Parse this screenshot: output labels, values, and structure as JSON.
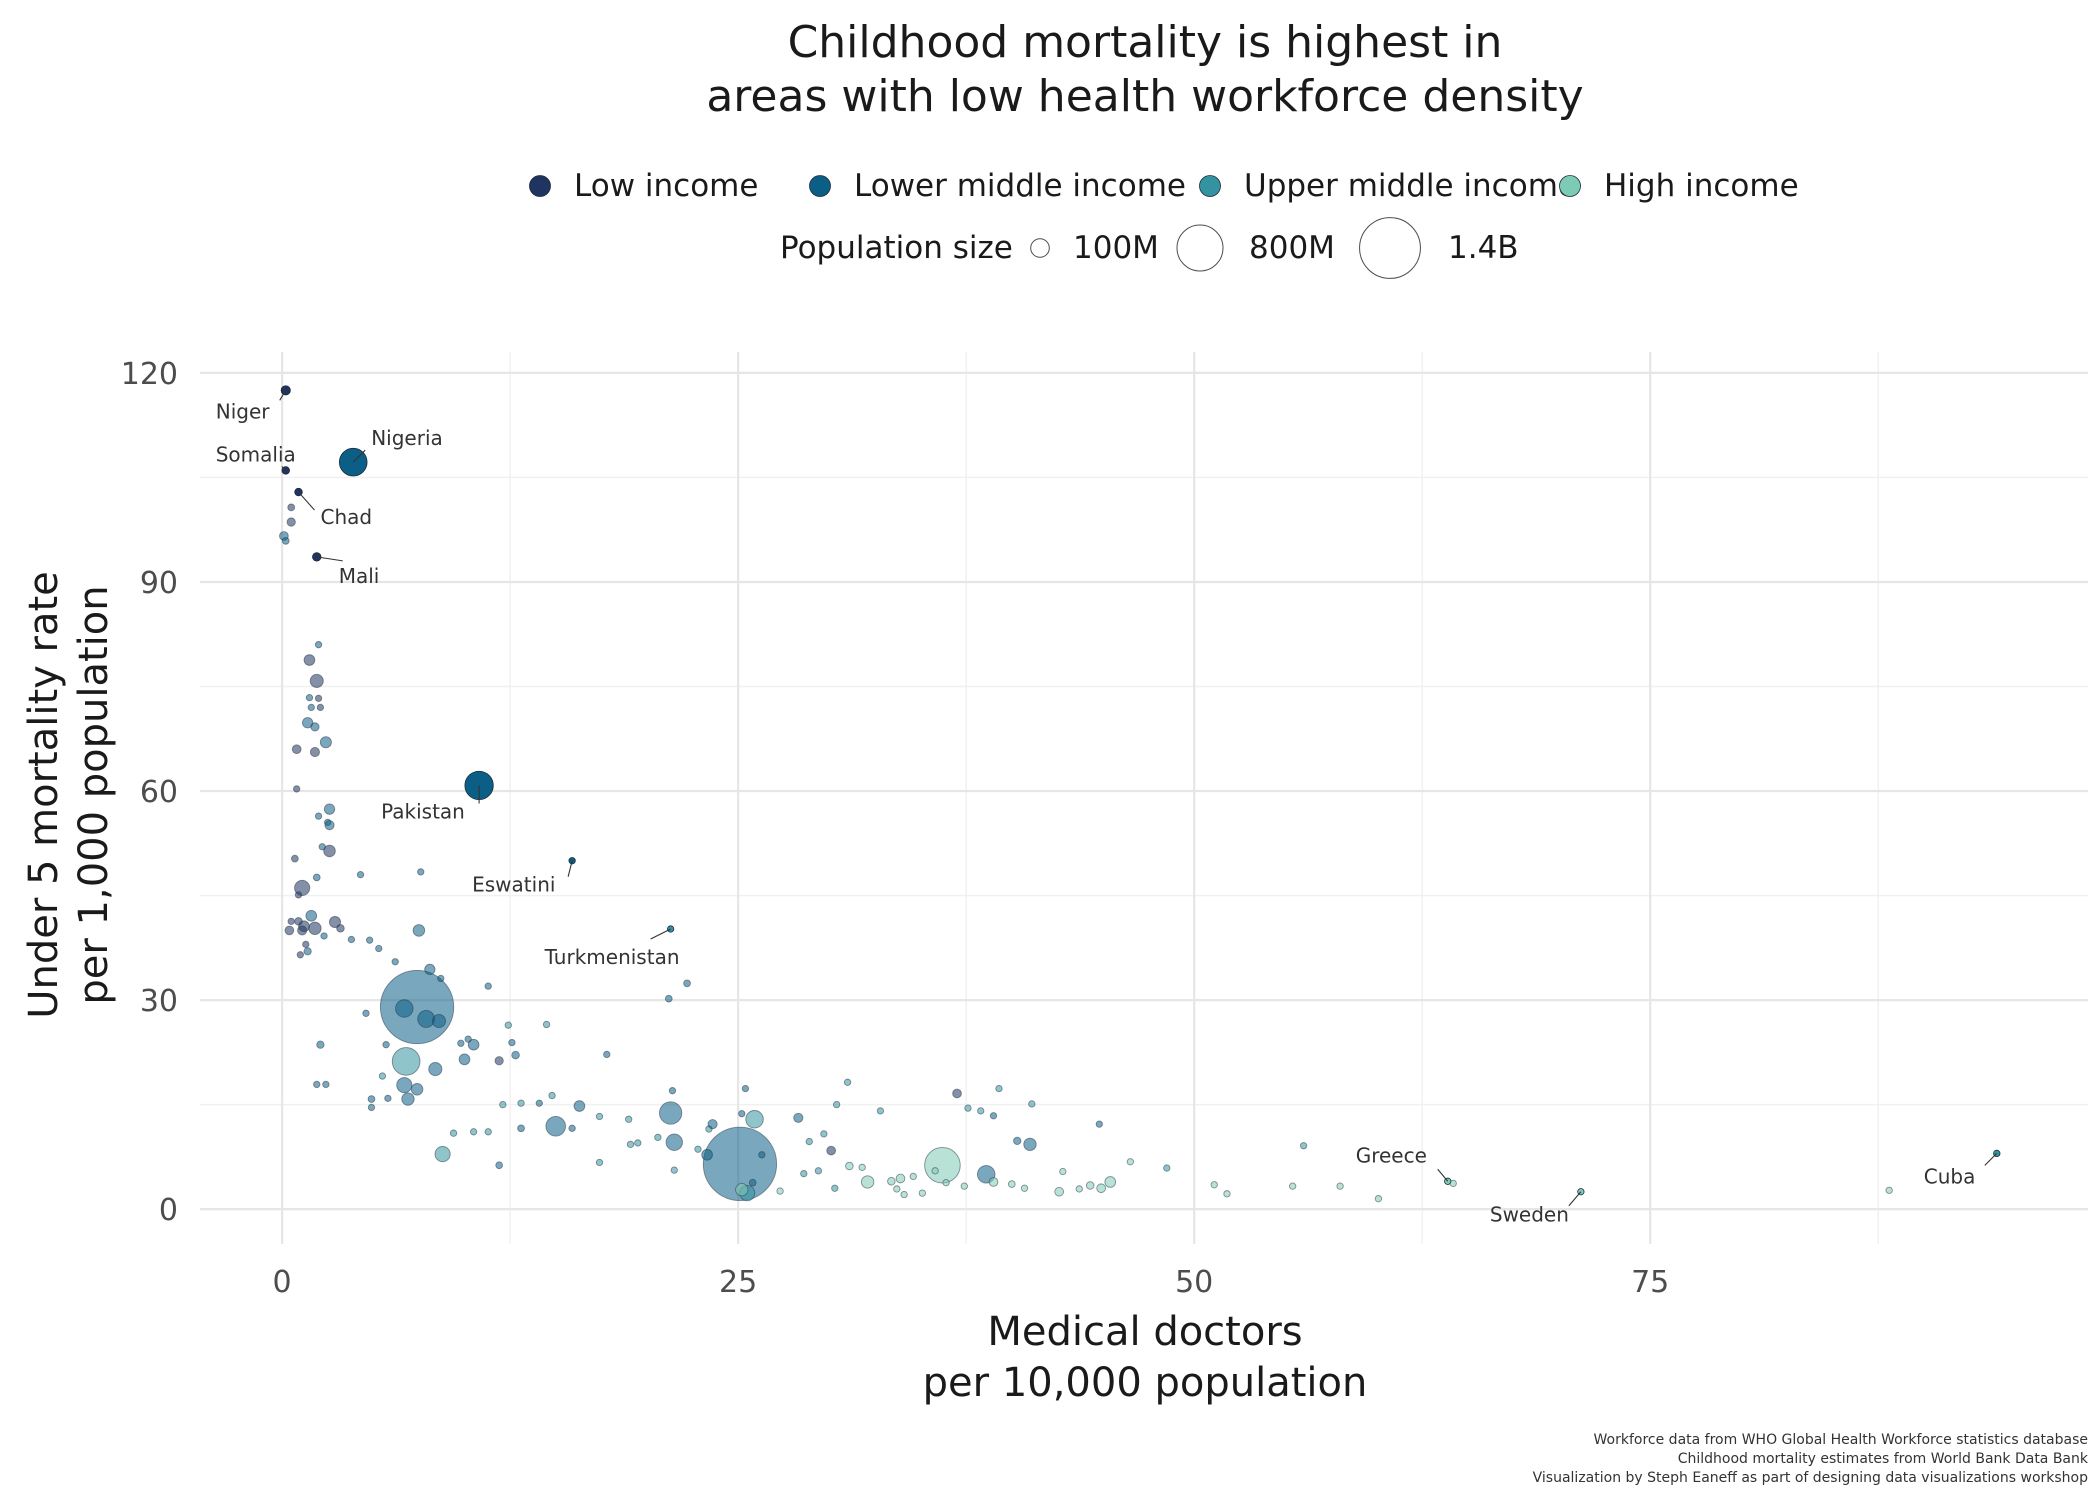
{
  "chart_data": {
    "type": "scatter",
    "title_lines": [
      "Childhood mortality is highest in",
      "areas with low health workforce density"
    ],
    "xlabel_lines": [
      "Medical doctors",
      "per 10,000 population"
    ],
    "ylabel_lines": [
      "Under 5 mortality rate",
      "per 1,000 population"
    ],
    "xlim": [
      -4.5,
      99
    ],
    "ylim": [
      -5,
      123
    ],
    "x_ticks": [
      0,
      25,
      50,
      75
    ],
    "y_ticks": [
      0,
      30,
      60,
      90,
      120
    ],
    "grid": true,
    "legend_position": "top",
    "color_legend": [
      {
        "label": "Low income",
        "color": "#1f3461"
      },
      {
        "label": "Lower middle income",
        "color": "#0b5f86"
      },
      {
        "label": "Upper middle income",
        "color": "#3393a1"
      },
      {
        "label": "High income",
        "color": "#7dcbb5"
      }
    ],
    "size_legend": {
      "title": "Population size",
      "items": [
        {
          "label": "100M",
          "population_millions": 100
        },
        {
          "label": "800M",
          "population_millions": 800
        },
        {
          "label": "1.4B",
          "population_millions": 1400
        }
      ]
    },
    "highlighted_points": [
      {
        "label": "Niger",
        "x": 0.2,
        "y": 117.5,
        "group": "Low income",
        "pop": 22
      },
      {
        "label": "Nigeria",
        "x": 3.9,
        "y": 107.2,
        "group": "Lower middle income",
        "pop": 200
      },
      {
        "label": "Somalia",
        "x": 0.2,
        "y": 106.0,
        "group": "Low income",
        "pop": 15
      },
      {
        "label": "Chad",
        "x": 0.9,
        "y": 102.9,
        "group": "Low income",
        "pop": 15
      },
      {
        "label": "Mali",
        "x": 1.9,
        "y": 93.6,
        "group": "Low income",
        "pop": 19
      },
      {
        "label": "Pakistan",
        "x": 10.8,
        "y": 60.8,
        "group": "Lower middle income",
        "pop": 210
      },
      {
        "label": "Eswatini",
        "x": 15.9,
        "y": 50.0,
        "group": "Lower middle income",
        "pop": 1
      },
      {
        "label": "Turkmenistan",
        "x": 21.3,
        "y": 40.2,
        "group": "Upper middle income",
        "pop": 6
      },
      {
        "label": "Greece",
        "x": 63.9,
        "y": 4.0,
        "group": "High income",
        "pop": 10
      },
      {
        "label": "Sweden",
        "x": 71.2,
        "y": 2.5,
        "group": "High income",
        "pop": 10
      },
      {
        "label": "Cuba",
        "x": 94.0,
        "y": 8.0,
        "group": "Upper middle income",
        "pop": 11
      }
    ],
    "points": [
      [
        0.1,
        96.6,
        2,
        20
      ],
      [
        0.2,
        95.9,
        2,
        12
      ],
      [
        0.5,
        100.7,
        1,
        12
      ],
      [
        0.5,
        98.6,
        1,
        18
      ],
      [
        1.5,
        78.8,
        1,
        30
      ],
      [
        2.0,
        81.0,
        2,
        8
      ],
      [
        1.9,
        75.8,
        1,
        45
      ],
      [
        1.5,
        73.4,
        2,
        6
      ],
      [
        2.0,
        73.3,
        1,
        10
      ],
      [
        1.6,
        72.0,
        2,
        6
      ],
      [
        2.1,
        72.0,
        1,
        5
      ],
      [
        1.4,
        69.8,
        2,
        28
      ],
      [
        1.8,
        69.2,
        2,
        18
      ],
      [
        2.4,
        67.0,
        2,
        32
      ],
      [
        0.8,
        66.0,
        1,
        20
      ],
      [
        1.8,
        65.6,
        1,
        22
      ],
      [
        0.8,
        60.3,
        1,
        6
      ],
      [
        2.6,
        57.4,
        2,
        28
      ],
      [
        2.5,
        55.5,
        2,
        8
      ],
      [
        2.6,
        55.1,
        2,
        22
      ],
      [
        2.0,
        56.4,
        2,
        4
      ],
      [
        2.2,
        52.0,
        2,
        5
      ],
      [
        2.6,
        51.4,
        1,
        35
      ],
      [
        0.7,
        50.3,
        1,
        12
      ],
      [
        1.9,
        47.6,
        2,
        12
      ],
      [
        1.1,
        46.1,
        1,
        60
      ],
      [
        0.9,
        45.1,
        1,
        8
      ],
      [
        4.3,
        48.0,
        2,
        4
      ],
      [
        7.6,
        48.4,
        2,
        4
      ],
      [
        0.5,
        41.3,
        1,
        10
      ],
      [
        0.9,
        41.3,
        1,
        15
      ],
      [
        1.2,
        40.6,
        1,
        30
      ],
      [
        1.6,
        42.1,
        2,
        30
      ],
      [
        1.8,
        40.3,
        1,
        40
      ],
      [
        1.1,
        40.0,
        1,
        22
      ],
      [
        0.4,
        40.0,
        1,
        20
      ],
      [
        1.3,
        38.0,
        1,
        10
      ],
      [
        1.4,
        37.0,
        2,
        14
      ],
      [
        1.0,
        36.5,
        1,
        8
      ],
      [
        2.3,
        39.2,
        2,
        10
      ],
      [
        2.9,
        41.2,
        1,
        32
      ],
      [
        3.2,
        40.3,
        1,
        15
      ],
      [
        3.8,
        38.7,
        2,
        6
      ],
      [
        4.8,
        38.6,
        2,
        5
      ],
      [
        5.3,
        37.4,
        2,
        5
      ],
      [
        7.5,
        40.0,
        2,
        35
      ],
      [
        8.1,
        34.4,
        2,
        28
      ],
      [
        6.2,
        35.5,
        2,
        5
      ],
      [
        8.7,
        33.1,
        2,
        8
      ],
      [
        11.3,
        32.0,
        2,
        3
      ],
      [
        22.2,
        32.4,
        2,
        12
      ],
      [
        21.2,
        30.2,
        2,
        12
      ],
      [
        7.4,
        29.0,
        2,
        1400
      ],
      [
        6.7,
        28.8,
        2,
        80
      ],
      [
        7.9,
        27.3,
        2,
        75
      ],
      [
        8.6,
        27.0,
        2,
        45
      ],
      [
        4.6,
        28.1,
        2,
        4
      ],
      [
        10.2,
        24.4,
        2,
        6
      ],
      [
        10.5,
        23.6,
        2,
        30
      ],
      [
        9.8,
        23.8,
        2,
        6
      ],
      [
        12.6,
        23.9,
        2,
        10
      ],
      [
        12.4,
        26.4,
        3,
        3
      ],
      [
        14.5,
        26.5,
        3,
        4
      ],
      [
        2.1,
        23.6,
        2,
        14
      ],
      [
        5.7,
        23.6,
        2,
        4
      ],
      [
        6.8,
        21.2,
        3,
        200
      ],
      [
        11.9,
        21.3,
        1,
        18
      ],
      [
        12.8,
        22.1,
        2,
        15
      ],
      [
        10.0,
        21.5,
        2,
        30
      ],
      [
        17.8,
        22.2,
        2,
        3
      ],
      [
        8.4,
        20.1,
        2,
        45
      ],
      [
        6.7,
        17.8,
        2,
        60
      ],
      [
        7.4,
        17.2,
        2,
        35
      ],
      [
        5.5,
        19.1,
        3,
        8
      ],
      [
        1.9,
        17.9,
        2,
        4
      ],
      [
        2.4,
        17.9,
        2,
        6
      ],
      [
        6.9,
        15.8,
        2,
        40
      ],
      [
        5.8,
        15.9,
        2,
        3
      ],
      [
        4.9,
        15.8,
        2,
        12
      ],
      [
        4.9,
        14.6,
        2,
        4
      ],
      [
        14.8,
        16.3,
        3,
        4
      ],
      [
        21.4,
        17.0,
        2,
        10
      ],
      [
        25.4,
        17.3,
        2,
        8
      ],
      [
        37.0,
        16.6,
        1,
        20
      ],
      [
        39.3,
        17.3,
        3,
        8
      ],
      [
        31.0,
        18.2,
        3,
        10
      ],
      [
        12.1,
        15.0,
        3,
        3
      ],
      [
        13.1,
        15.2,
        3,
        4
      ],
      [
        16.3,
        14.8,
        2,
        30
      ],
      [
        17.4,
        13.3,
        3,
        6
      ],
      [
        19.0,
        12.9,
        3,
        4
      ],
      [
        21.3,
        13.8,
        2,
        130
      ],
      [
        13.1,
        11.6,
        2,
        12
      ],
      [
        15.0,
        11.9,
        2,
        100
      ],
      [
        15.9,
        11.6,
        2,
        8
      ],
      [
        10.5,
        11.1,
        3,
        3
      ],
      [
        11.3,
        11.1,
        3,
        3
      ],
      [
        9.4,
        10.9,
        3,
        3
      ],
      [
        19.1,
        9.3,
        3,
        5
      ],
      [
        19.5,
        9.5,
        3,
        5
      ],
      [
        20.6,
        10.3,
        3,
        4
      ],
      [
        21.5,
        9.6,
        2,
        70
      ],
      [
        23.4,
        11.5,
        3,
        4
      ],
      [
        23.6,
        12.2,
        2,
        22
      ],
      [
        25.2,
        13.7,
        2,
        10
      ],
      [
        25.9,
        12.9,
        3,
        80
      ],
      [
        28.3,
        13.1,
        2,
        22
      ],
      [
        30.1,
        8.4,
        1,
        20
      ],
      [
        29.7,
        10.8,
        3,
        4
      ],
      [
        28.9,
        9.7,
        3,
        4
      ],
      [
        30.4,
        15.0,
        3,
        3
      ],
      [
        32.8,
        14.1,
        3,
        4
      ],
      [
        37.6,
        14.5,
        3,
        4
      ],
      [
        38.3,
        14.1,
        3,
        4
      ],
      [
        39.0,
        13.4,
        2,
        5
      ],
      [
        41.1,
        15.1,
        3,
        4
      ],
      [
        40.3,
        9.8,
        2,
        14
      ],
      [
        41.0,
        9.3,
        2,
        40
      ],
      [
        38.6,
        5.0,
        2,
        80
      ],
      [
        44.8,
        12.2,
        2,
        3
      ],
      [
        36.2,
        6.3,
        4,
        330
      ],
      [
        35.8,
        5.5,
        4,
        8
      ],
      [
        8.8,
        7.9,
        3,
        60
      ],
      [
        11.9,
        6.3,
        2,
        12
      ],
      [
        17.4,
        6.7,
        3,
        4
      ],
      [
        21.5,
        5.6,
        3,
        3
      ],
      [
        25.1,
        6.5,
        2,
        1400
      ],
      [
        25.8,
        3.8,
        2,
        12
      ],
      [
        25.5,
        2.3,
        3,
        60
      ],
      [
        25.2,
        2.8,
        4,
        40
      ],
      [
        27.3,
        2.6,
        4,
        4
      ],
      [
        26.3,
        7.8,
        2,
        5
      ],
      [
        23.3,
        7.8,
        2,
        30
      ],
      [
        22.8,
        8.6,
        3,
        8
      ],
      [
        28.6,
        5.1,
        3,
        8
      ],
      [
        29.4,
        5.5,
        3,
        10
      ],
      [
        30.3,
        3.0,
        3,
        3
      ],
      [
        31.1,
        6.2,
        4,
        15
      ],
      [
        31.8,
        6.0,
        4,
        3
      ],
      [
        32.1,
        3.9,
        4,
        40
      ],
      [
        33.4,
        4.0,
        4,
        15
      ],
      [
        33.9,
        4.4,
        4,
        20
      ],
      [
        34.6,
        4.7,
        4,
        10
      ],
      [
        33.7,
        2.9,
        4,
        5
      ],
      [
        34.1,
        2.1,
        4,
        5
      ],
      [
        35.1,
        2.3,
        4,
        6
      ],
      [
        36.4,
        3.8,
        4,
        8
      ],
      [
        37.4,
        3.3,
        4,
        10
      ],
      [
        39.0,
        3.9,
        4,
        20
      ],
      [
        40.0,
        3.6,
        4,
        12
      ],
      [
        40.7,
        3.0,
        4,
        6
      ],
      [
        42.6,
        2.5,
        4,
        20
      ],
      [
        43.7,
        2.9,
        4,
        10
      ],
      [
        42.8,
        5.4,
        4,
        5
      ],
      [
        44.3,
        3.4,
        4,
        15
      ],
      [
        44.9,
        3.0,
        4,
        20
      ],
      [
        45.4,
        3.9,
        4,
        30
      ],
      [
        46.5,
        6.8,
        4,
        4
      ],
      [
        48.5,
        5.9,
        3,
        8
      ],
      [
        51.1,
        3.5,
        4,
        6
      ],
      [
        51.8,
        2.2,
        4,
        5
      ],
      [
        55.4,
        3.3,
        4,
        6
      ],
      [
        56.0,
        9.1,
        3,
        5
      ],
      [
        58.0,
        3.3,
        4,
        8
      ],
      [
        60.1,
        1.5,
        4,
        3
      ],
      [
        64.2,
        3.7,
        4,
        10
      ],
      [
        88.1,
        2.7,
        4,
        3
      ],
      [
        14.1,
        15.2,
        2,
        4
      ]
    ]
  },
  "caption_lines": [
    "Workforce data from WHO Global Health Workforce statistics database",
    "Childhood mortality estimates from World Bank Data Bank",
    "Visualization by Steph Eaneff as part of designing data visualizations workshop"
  ]
}
